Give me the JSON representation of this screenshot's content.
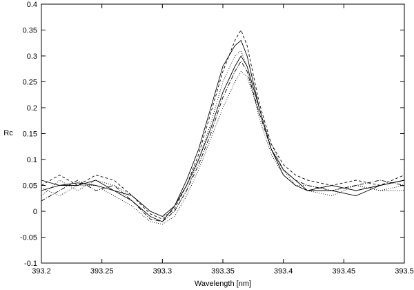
{
  "chart_data": {
    "type": "line",
    "title": "",
    "xlabel": "Wavelength [nm]",
    "ylabel": "Rc",
    "xlim": [
      393.2,
      393.5
    ],
    "ylim": [
      -0.1,
      0.4
    ],
    "xticks": [
      393.2,
      393.25,
      393.3,
      393.35,
      393.4,
      393.45,
      393.5
    ],
    "xtick_labels": [
      "393.2",
      "393.25",
      "393.3",
      "393.35",
      "393.4",
      "393.45",
      "393.5"
    ],
    "yticks": [
      -0.1,
      -0.05,
      0,
      0.05,
      0.1,
      0.15,
      0.2,
      0.25,
      0.3,
      0.35,
      0.4
    ],
    "ytick_labels": [
      "-0.1",
      "-0.05",
      "0",
      "0.05",
      "0.1",
      "0.15",
      "0.2",
      "0.25",
      "0.3",
      "0.35",
      "0.4"
    ],
    "grid": false,
    "legend": "none",
    "line_color": "#000000",
    "x": [
      393.2,
      393.215,
      393.23,
      393.245,
      393.26,
      393.275,
      393.29,
      393.3,
      393.31,
      393.32,
      393.33,
      393.34,
      393.35,
      393.36,
      393.365,
      393.37,
      393.38,
      393.39,
      393.4,
      393.41,
      393.42,
      393.44,
      393.46,
      393.48,
      393.5
    ],
    "series": [
      {
        "dash": "solid",
        "values": [
          0.04,
          0.05,
          0.055,
          0.05,
          0.04,
          0.02,
          -0.01,
          -0.02,
          0.01,
          0.06,
          0.12,
          0.2,
          0.28,
          0.32,
          0.33,
          0.3,
          0.2,
          0.12,
          0.08,
          0.06,
          0.04,
          0.05,
          0.04,
          0.05,
          0.06
        ]
      },
      {
        "dash": "dotted",
        "values": [
          0.03,
          0.06,
          0.04,
          0.06,
          0.05,
          0.03,
          0.0,
          -0.01,
          0.0,
          0.04,
          0.1,
          0.17,
          0.25,
          0.3,
          0.31,
          0.28,
          0.18,
          0.11,
          0.07,
          0.05,
          0.05,
          0.04,
          0.05,
          0.04,
          0.05
        ]
      },
      {
        "dash": "dashed",
        "values": [
          0.05,
          0.07,
          0.05,
          0.07,
          0.06,
          0.03,
          -0.005,
          -0.015,
          0.005,
          0.05,
          0.11,
          0.19,
          0.27,
          0.33,
          0.35,
          0.32,
          0.21,
          0.13,
          0.09,
          0.07,
          0.06,
          0.05,
          0.06,
          0.05,
          0.07
        ]
      },
      {
        "dash": "dashdot",
        "values": [
          0.02,
          0.04,
          0.06,
          0.04,
          0.05,
          0.02,
          -0.015,
          -0.02,
          0.0,
          0.04,
          0.09,
          0.15,
          0.22,
          0.27,
          0.29,
          0.27,
          0.19,
          0.12,
          0.08,
          0.06,
          0.05,
          0.04,
          0.05,
          0.06,
          0.05
        ]
      },
      {
        "dash": "solid",
        "values": [
          0.06,
          0.05,
          0.05,
          0.06,
          0.04,
          0.03,
          0.0,
          -0.01,
          0.01,
          0.05,
          0.1,
          0.16,
          0.23,
          0.28,
          0.3,
          0.28,
          0.2,
          0.12,
          0.07,
          0.05,
          0.04,
          0.04,
          0.03,
          0.05,
          0.06
        ]
      },
      {
        "dash": "dotted",
        "values": [
          0.045,
          0.03,
          0.05,
          0.05,
          0.03,
          0.01,
          -0.02,
          -0.025,
          -0.01,
          0.03,
          0.08,
          0.14,
          0.2,
          0.25,
          0.27,
          0.26,
          0.19,
          0.13,
          0.08,
          0.05,
          0.04,
          0.03,
          0.05,
          0.04,
          0.04
        ]
      }
    ]
  }
}
